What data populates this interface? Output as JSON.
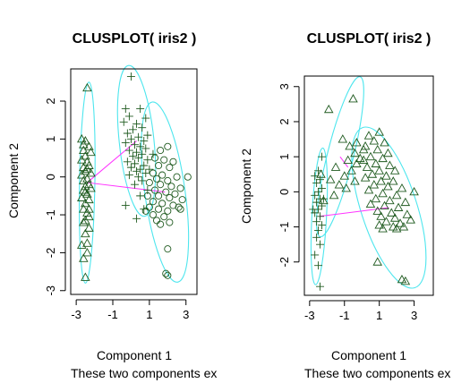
{
  "colors": {
    "points": "#1f5a1f",
    "ellipse": "#4ee6ee",
    "connector": "#ff33ff",
    "frame": "#000000",
    "text": "#000000"
  },
  "chart_data": [
    {
      "type": "scatter",
      "title": "CLUSPLOT( iris2 )",
      "xlabel": "Component 1",
      "ylabel": "Component 2",
      "subtitle": "These two components ex",
      "xlim": [
        -3.3,
        3.6
      ],
      "ylim": [
        -3.1,
        2.85
      ],
      "xticks": [
        -3,
        -1,
        1,
        3
      ],
      "yticks": [
        -3,
        -2,
        -1,
        0,
        1,
        2
      ],
      "clusters": [
        {
          "marker": "triangle",
          "ellipse": {
            "cx": -2.4,
            "cy": -0.15,
            "rx": 0.42,
            "ry": 2.65,
            "rot_deg": 1
          },
          "points": [
            [
              -2.4,
              2.35
            ],
            [
              -2.7,
              1.0
            ],
            [
              -2.5,
              0.95
            ],
            [
              -2.3,
              0.8
            ],
            [
              -2.6,
              0.7
            ],
            [
              -2.2,
              0.65
            ],
            [
              -2.5,
              0.55
            ],
            [
              -2.7,
              0.45
            ],
            [
              -2.4,
              0.4
            ],
            [
              -2.3,
              0.3
            ],
            [
              -2.6,
              0.25
            ],
            [
              -2.5,
              0.15
            ],
            [
              -2.2,
              0.1
            ],
            [
              -2.7,
              0.05
            ],
            [
              -2.4,
              -0.05
            ],
            [
              -2.6,
              -0.1
            ],
            [
              -2.3,
              -0.2
            ],
            [
              -2.5,
              -0.25
            ],
            [
              -2.2,
              -0.3
            ],
            [
              -2.6,
              -0.35
            ],
            [
              -2.4,
              -0.45
            ],
            [
              -2.7,
              -0.55
            ],
            [
              -2.3,
              -0.6
            ],
            [
              -2.5,
              -0.7
            ],
            [
              -2.6,
              -0.85
            ],
            [
              -2.4,
              -0.95
            ],
            [
              -2.3,
              -1.05
            ],
            [
              -2.5,
              -1.15
            ],
            [
              -2.6,
              -1.2
            ],
            [
              -2.3,
              -1.35
            ],
            [
              -2.5,
              -1.5
            ],
            [
              -2.4,
              -1.75
            ],
            [
              -2.7,
              -1.8
            ],
            [
              -2.4,
              -2.0
            ],
            [
              -2.6,
              -2.15
            ],
            [
              -2.5,
              -2.65
            ],
            [
              -2.3,
              -0.85
            ],
            [
              -2.6,
              0.85
            ],
            [
              -2.4,
              0.2
            ],
            [
              -2.5,
              -0.4
            ]
          ]
        },
        {
          "marker": "plus",
          "ellipse": {
            "cx": 0.3,
            "cy": 0.95,
            "rx": 0.95,
            "ry": 2.0,
            "rot_deg": -6
          },
          "points": [
            [
              0.0,
              2.65
            ],
            [
              -0.3,
              1.8
            ],
            [
              0.5,
              1.8
            ],
            [
              -0.1,
              1.6
            ],
            [
              0.8,
              1.55
            ],
            [
              -0.4,
              1.45
            ],
            [
              0.3,
              1.4
            ],
            [
              0.6,
              1.3
            ],
            [
              0.1,
              1.25
            ],
            [
              -0.2,
              1.15
            ],
            [
              0.9,
              1.1
            ],
            [
              0.4,
              1.05
            ],
            [
              0.0,
              1.0
            ],
            [
              0.7,
              0.95
            ],
            [
              -0.3,
              0.9
            ],
            [
              0.2,
              0.85
            ],
            [
              0.5,
              0.8
            ],
            [
              0.8,
              0.75
            ],
            [
              -0.1,
              0.7
            ],
            [
              0.3,
              0.65
            ],
            [
              0.6,
              0.6
            ],
            [
              0.1,
              0.55
            ],
            [
              0.4,
              0.5
            ],
            [
              0.9,
              0.45
            ],
            [
              -0.2,
              0.4
            ],
            [
              0.2,
              0.35
            ],
            [
              0.7,
              0.3
            ],
            [
              0.0,
              0.25
            ],
            [
              0.5,
              0.2
            ],
            [
              0.3,
              0.15
            ],
            [
              0.8,
              0.1
            ],
            [
              -0.1,
              0.05
            ],
            [
              0.4,
              0.0
            ],
            [
              0.6,
              -0.1
            ],
            [
              0.2,
              -0.2
            ],
            [
              0.9,
              -0.35
            ],
            [
              0.5,
              -0.5
            ],
            [
              -0.3,
              -0.75
            ],
            [
              0.7,
              -0.85
            ],
            [
              0.3,
              -1.1
            ],
            [
              1.2,
              0.6
            ],
            [
              1.0,
              0.2
            ]
          ]
        },
        {
          "marker": "circle",
          "ellipse": {
            "cx": 1.85,
            "cy": -0.4,
            "rx": 1.1,
            "ry": 2.4,
            "rot_deg": -8
          },
          "points": [
            [
              1.6,
              0.7
            ],
            [
              2.0,
              0.8
            ],
            [
              1.3,
              0.5
            ],
            [
              1.8,
              0.45
            ],
            [
              2.3,
              0.4
            ],
            [
              1.5,
              0.3
            ],
            [
              2.1,
              0.25
            ],
            [
              1.2,
              0.1
            ],
            [
              1.7,
              0.05
            ],
            [
              2.5,
              0.0
            ],
            [
              3.1,
              0.0
            ],
            [
              1.4,
              -0.05
            ],
            [
              2.0,
              -0.1
            ],
            [
              1.0,
              -0.15
            ],
            [
              1.6,
              -0.2
            ],
            [
              2.2,
              -0.25
            ],
            [
              2.7,
              -0.3
            ],
            [
              1.3,
              -0.35
            ],
            [
              1.9,
              -0.4
            ],
            [
              2.4,
              -0.45
            ],
            [
              0.9,
              -0.5
            ],
            [
              1.5,
              -0.5
            ],
            [
              2.1,
              -0.55
            ],
            [
              2.8,
              -0.6
            ],
            [
              1.2,
              -0.65
            ],
            [
              1.7,
              -0.7
            ],
            [
              2.3,
              -0.75
            ],
            [
              1.0,
              -0.8
            ],
            [
              1.5,
              -0.85
            ],
            [
              2.0,
              -0.9
            ],
            [
              2.6,
              -0.8
            ],
            [
              2.7,
              -0.85
            ],
            [
              1.2,
              -1.0
            ],
            [
              1.8,
              -1.05
            ],
            [
              1.4,
              -1.15
            ],
            [
              2.1,
              -1.2
            ],
            [
              0.8,
              -0.9
            ],
            [
              1.6,
              -1.25
            ],
            [
              2.0,
              -1.9
            ],
            [
              1.9,
              -2.55
            ],
            [
              2.0,
              -2.6
            ]
          ]
        }
      ],
      "connectors": [
        [
          [
            -2.4,
            -0.15
          ],
          [
            0.3,
            0.95
          ]
        ],
        [
          [
            -2.4,
            -0.15
          ],
          [
            1.85,
            -0.4
          ]
        ]
      ]
    },
    {
      "type": "scatter",
      "title": "CLUSPLOT( iris2 )",
      "xlabel": "Component 1",
      "ylabel": "Component 2",
      "subtitle": "These two components ex",
      "xlim": [
        -3.3,
        4.1
      ],
      "ylim": [
        -2.95,
        3.3
      ],
      "xticks": [
        -3,
        -1,
        1,
        3
      ],
      "yticks": [
        -2,
        -1,
        0,
        1,
        2,
        3
      ],
      "clusters": [
        {
          "marker": "plus",
          "ellipse": {
            "cx": -2.45,
            "cy": -0.7,
            "rx": 0.42,
            "ry": 1.95,
            "rot_deg": 3
          },
          "points": [
            [
              -2.3,
              1.0
            ],
            [
              -2.5,
              0.6
            ],
            [
              -2.7,
              0.45
            ],
            [
              -2.4,
              0.35
            ],
            [
              -2.6,
              0.25
            ],
            [
              -2.3,
              0.1
            ],
            [
              -2.5,
              0.0
            ],
            [
              -2.7,
              -0.1
            ],
            [
              -2.4,
              -0.2
            ],
            [
              -2.6,
              -0.3
            ],
            [
              -2.3,
              -0.4
            ],
            [
              -2.5,
              -0.5
            ],
            [
              -2.7,
              -0.6
            ],
            [
              -2.4,
              -0.7
            ],
            [
              -2.6,
              -0.85
            ],
            [
              -2.3,
              -0.95
            ],
            [
              -2.5,
              -1.1
            ],
            [
              -2.6,
              -1.3
            ],
            [
              -2.4,
              -1.5
            ],
            [
              -2.7,
              -1.8
            ],
            [
              -2.5,
              -2.1
            ],
            [
              -2.4,
              -2.7
            ],
            [
              -2.8,
              -0.5
            ],
            [
              -2.2,
              -0.2
            ]
          ]
        },
        {
          "marker": "triangle",
          "ellipse": {
            "cx": -1.25,
            "cy": 1.0,
            "rx": 0.75,
            "ry": 2.35,
            "rot_deg": 14
          },
          "points": [
            [
              -0.5,
              2.65
            ],
            [
              -1.9,
              2.35
            ],
            [
              -1.1,
              1.5
            ],
            [
              -0.3,
              1.4
            ],
            [
              -0.7,
              1.3
            ],
            [
              0.1,
              1.2
            ],
            [
              -0.4,
              1.1
            ],
            [
              -0.1,
              0.95
            ],
            [
              -0.8,
              0.9
            ],
            [
              -0.3,
              0.8
            ],
            [
              -1.5,
              0.7
            ],
            [
              -0.6,
              0.6
            ],
            [
              -2.35,
              0.5
            ],
            [
              -1.0,
              0.45
            ],
            [
              -1.8,
              0.35
            ],
            [
              -0.4,
              0.3
            ],
            [
              -1.3,
              0.2
            ],
            [
              -0.9,
              0.1
            ],
            [
              -2.2,
              -0.25
            ],
            [
              -1.6,
              -0.1
            ]
          ]
        },
        {
          "marker": "triangle",
          "ellipse": {
            "cx": 1.55,
            "cy": -0.45,
            "rx": 1.6,
            "ry": 2.4,
            "rot_deg": -18
          },
          "points": [
            [
              0.4,
              1.6
            ],
            [
              1.0,
              1.7
            ],
            [
              0.7,
              1.45
            ],
            [
              1.3,
              1.4
            ],
            [
              0.2,
              1.3
            ],
            [
              0.9,
              1.2
            ],
            [
              1.5,
              1.1
            ],
            [
              0.5,
              1.0
            ],
            [
              1.2,
              0.95
            ],
            [
              0.1,
              0.9
            ],
            [
              0.8,
              0.8
            ],
            [
              1.6,
              0.75
            ],
            [
              0.3,
              0.7
            ],
            [
              1.0,
              0.6
            ],
            [
              1.9,
              0.6
            ],
            [
              0.6,
              0.5
            ],
            [
              1.4,
              0.45
            ],
            [
              0.2,
              0.4
            ],
            [
              1.1,
              0.3
            ],
            [
              1.8,
              0.3
            ],
            [
              0.7,
              0.2
            ],
            [
              1.5,
              0.15
            ],
            [
              2.3,
              0.1
            ],
            [
              3.0,
              0.0
            ],
            [
              0.4,
              0.05
            ],
            [
              1.2,
              -0.05
            ],
            [
              2.0,
              -0.1
            ],
            [
              0.8,
              -0.2
            ],
            [
              1.6,
              -0.25
            ],
            [
              2.5,
              -0.3
            ],
            [
              0.5,
              -0.35
            ],
            [
              1.3,
              -0.4
            ],
            [
              2.1,
              -0.45
            ],
            [
              0.9,
              -0.55
            ],
            [
              1.7,
              -0.6
            ],
            [
              2.6,
              -0.65
            ],
            [
              1.1,
              -0.7
            ],
            [
              1.9,
              -0.75
            ],
            [
              2.8,
              -0.8
            ],
            [
              1.4,
              -0.85
            ],
            [
              2.2,
              -0.9
            ],
            [
              1.0,
              -0.95
            ],
            [
              1.8,
              -1.0
            ],
            [
              2.4,
              -1.0
            ],
            [
              1.2,
              -1.05
            ],
            [
              2.0,
              -1.05
            ],
            [
              0.9,
              -2.0
            ],
            [
              2.3,
              -2.5
            ],
            [
              2.5,
              -2.55
            ]
          ]
        }
      ],
      "connectors": [
        [
          [
            -2.45,
            -0.7
          ],
          [
            1.55,
            -0.45
          ]
        ],
        [
          [
            -1.25,
            1.0
          ],
          [
            -0.8,
            0.7
          ]
        ]
      ]
    }
  ]
}
